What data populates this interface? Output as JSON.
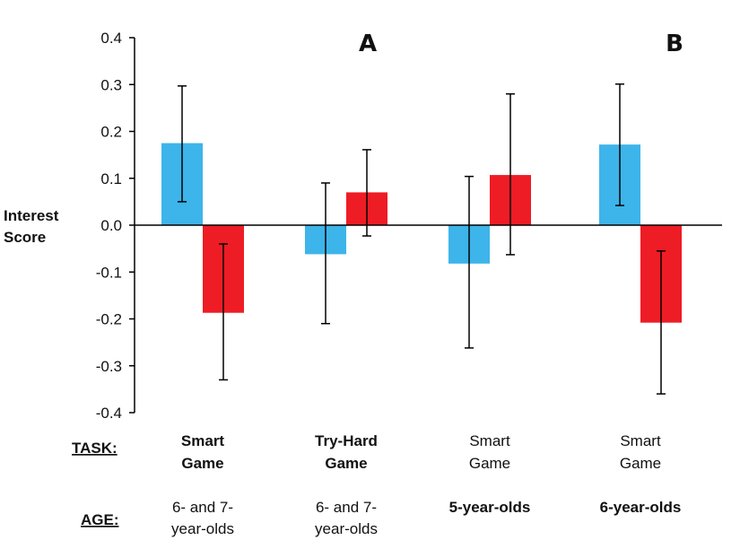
{
  "chart_data": {
    "type": "bar",
    "ylabel": [
      "Interest",
      "Score"
    ],
    "ylim": [
      -0.4,
      0.4
    ],
    "yticks": [
      0.4,
      0.3,
      0.2,
      0.1,
      0.0,
      -0.1,
      -0.2,
      -0.3,
      -0.4
    ],
    "panel_labels": [
      "A",
      "B"
    ],
    "row_headers": {
      "task": "TASK:",
      "age": "AGE:"
    },
    "series_colors": [
      "#3db4ea",
      "#ee1c25"
    ],
    "groups": [
      {
        "task": [
          "Smart",
          "Game"
        ],
        "task_bold": true,
        "age": [
          "6- and 7-",
          "year-olds"
        ],
        "age_bold": false,
        "bars": [
          {
            "value": 0.175,
            "err_low": 0.05,
            "err_high": 0.297
          },
          {
            "value": -0.187,
            "err_low": -0.33,
            "err_high": -0.04
          }
        ]
      },
      {
        "task": [
          "Try-Hard",
          "Game"
        ],
        "task_bold": true,
        "age": [
          "6- and 7-",
          "year-olds"
        ],
        "age_bold": false,
        "bars": [
          {
            "value": -0.062,
            "err_low": -0.21,
            "err_high": 0.09
          },
          {
            "value": 0.07,
            "err_low": -0.023,
            "err_high": 0.161
          }
        ]
      },
      {
        "task": [
          "Smart",
          "Game"
        ],
        "task_bold": false,
        "age": [
          "5-year-olds"
        ],
        "age_bold": true,
        "bars": [
          {
            "value": -0.082,
            "err_low": -0.262,
            "err_high": 0.104
          },
          {
            "value": 0.107,
            "err_low": -0.063,
            "err_high": 0.28
          }
        ]
      },
      {
        "task": [
          "Smart",
          "Game"
        ],
        "task_bold": false,
        "age": [
          "6-year-olds"
        ],
        "age_bold": true,
        "bars": [
          {
            "value": 0.172,
            "err_low": 0.042,
            "err_high": 0.301
          },
          {
            "value": -0.208,
            "err_low": -0.36,
            "err_high": -0.055
          }
        ]
      }
    ]
  }
}
